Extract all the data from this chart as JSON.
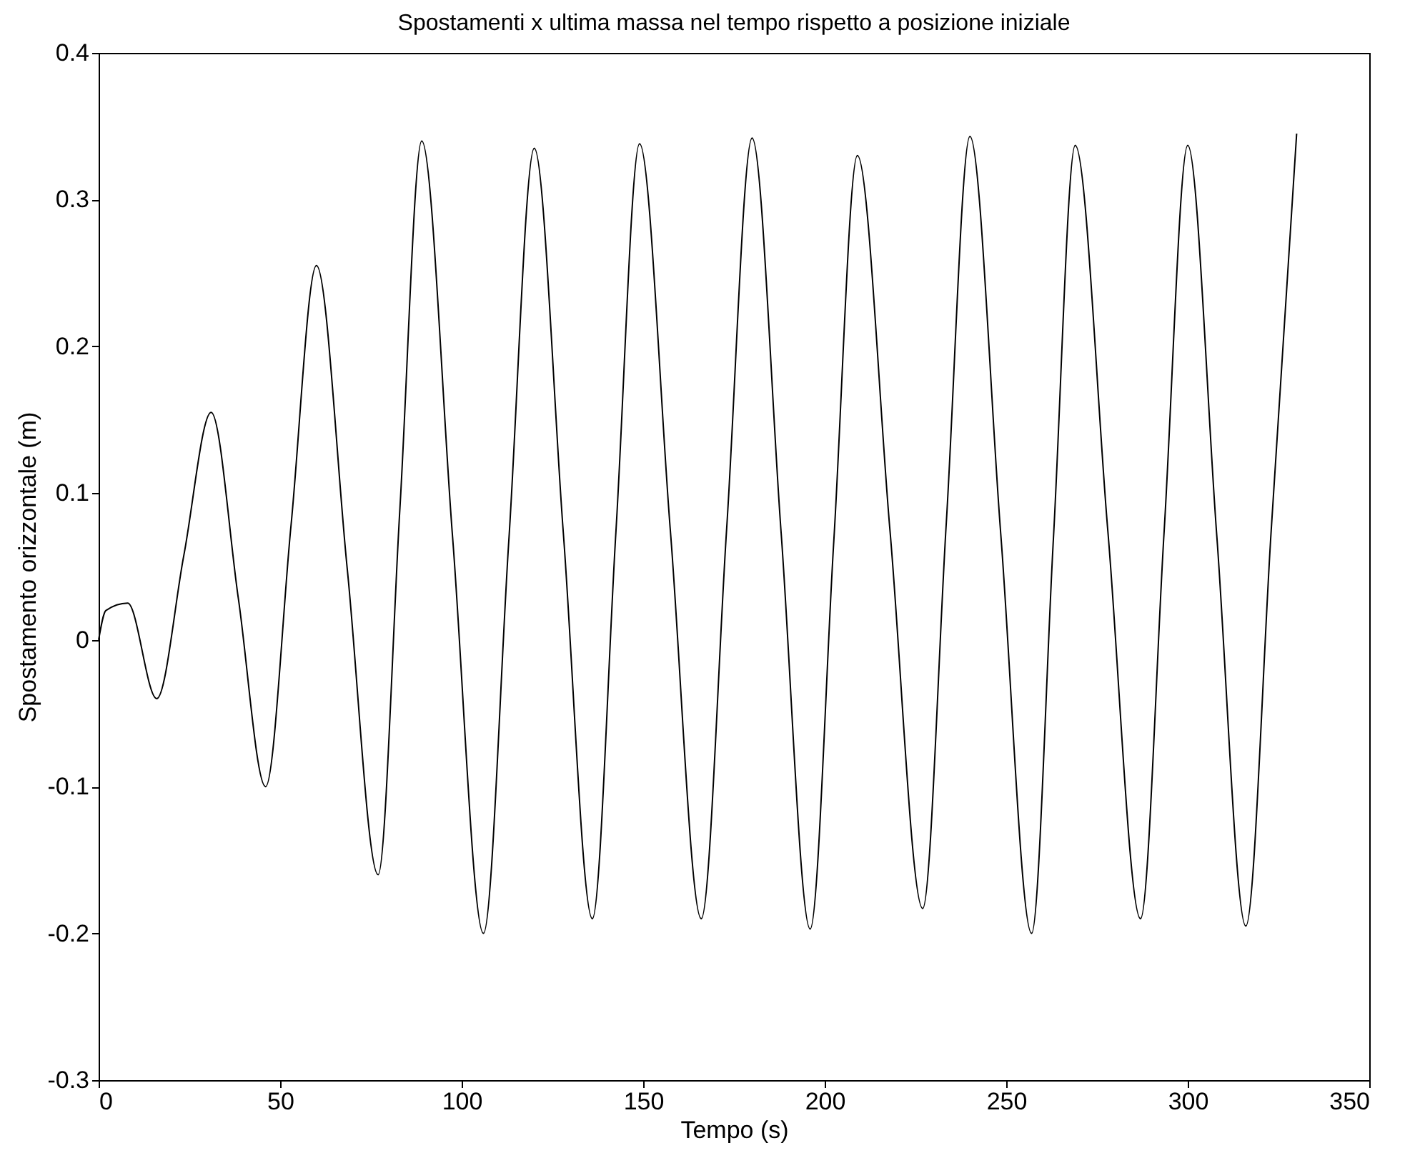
{
  "chart_data": {
    "type": "line",
    "title": "Spostamenti x ultima massa nel tempo rispetto a posizione iniziale",
    "xlabel": "Tempo (s)",
    "ylabel": "Spostamento orizzontale (m)",
    "x": [
      0,
      2,
      8,
      16,
      23.5,
      31,
      38.5,
      46,
      53,
      60,
      68.5,
      77,
      83,
      89,
      97.5,
      106,
      113,
      120,
      128,
      136,
      142.5,
      149,
      157.5,
      166,
      173,
      180,
      188,
      196,
      202.5,
      209,
      218,
      227,
      233.5,
      240,
      248.5,
      257,
      263,
      269,
      278,
      287,
      293.5,
      300,
      308,
      316,
      323,
      330
    ],
    "series": [
      {
        "color": "#000000",
        "values": [
          0,
          0.02,
          0.025,
          -0.04,
          0.058,
          0.155,
          0.028,
          -0.1,
          0.078,
          0.255,
          0.048,
          -0.16,
          0.09,
          0.34,
          0.07,
          -0.2,
          0.068,
          0.335,
          0.073,
          -0.19,
          0.074,
          0.338,
          0.074,
          -0.19,
          0.076,
          0.342,
          0.073,
          -0.197,
          0.067,
          0.33,
          0.074,
          -0.183,
          0.08,
          0.343,
          0.072,
          -0.2,
          0.069,
          0.337,
          0.074,
          -0.19,
          0.074,
          0.337,
          0.071,
          -0.195,
          0.075,
          0.345
        ]
      }
    ],
    "xlim": [
      0,
      350
    ],
    "xticks": [
      0,
      50,
      100,
      150,
      200,
      250,
      300,
      350
    ],
    "ylim": [
      -0.3,
      0.4
    ],
    "yticks": [
      -0.3,
      -0.2,
      -0.1,
      0,
      0.1,
      0.2,
      0.3,
      0.4
    ],
    "grid": false,
    "legend": false,
    "marker": "none",
    "line_style": "solid"
  }
}
